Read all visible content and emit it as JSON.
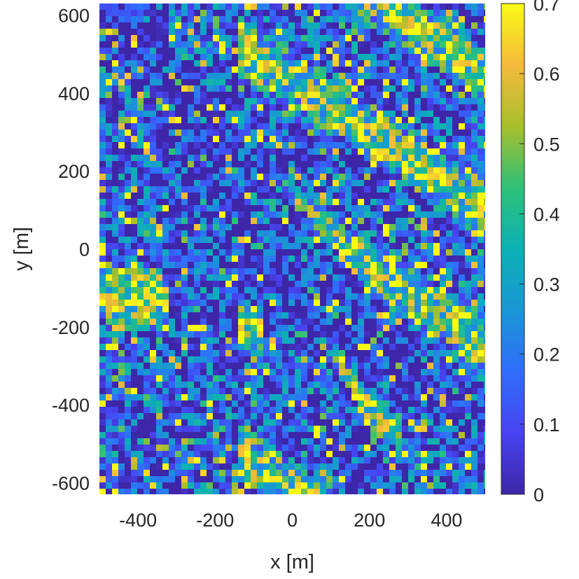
{
  "chart_data": {
    "type": "heatmap",
    "title": "",
    "xlabel": "x [m]",
    "ylabel": "y [m]",
    "xlim": [
      -500,
      500
    ],
    "ylim": [
      -630,
      630
    ],
    "xticks": [
      -400,
      -200,
      0,
      200,
      400
    ],
    "xtick_labels": [
      "-400",
      "-200",
      "0",
      "200",
      "400"
    ],
    "yticks": [
      600,
      400,
      200,
      0,
      -200,
      -400,
      -600
    ],
    "ytick_labels": [
      "600",
      "400",
      "200",
      "0",
      "-200",
      "-400",
      "-600"
    ],
    "colorbar": {
      "colormap": "parula",
      "clim": [
        0,
        0.7
      ],
      "ticks": [
        0,
        0.1,
        0.2,
        0.3,
        0.4,
        0.5,
        0.6,
        0.7
      ],
      "tick_labels": [
        "0",
        "0.1",
        "0.2",
        "0.3",
        "0.4",
        "0.5",
        "0.6",
        "0.7"
      ],
      "colors": [
        "#3e26a8",
        "#4743f0",
        "#2f6ffa",
        "#1a96d6",
        "#0cb1b4",
        "#2fc178",
        "#a7bf2c",
        "#f5ba3c",
        "#f9fb15"
      ]
    },
    "grid": false
  }
}
